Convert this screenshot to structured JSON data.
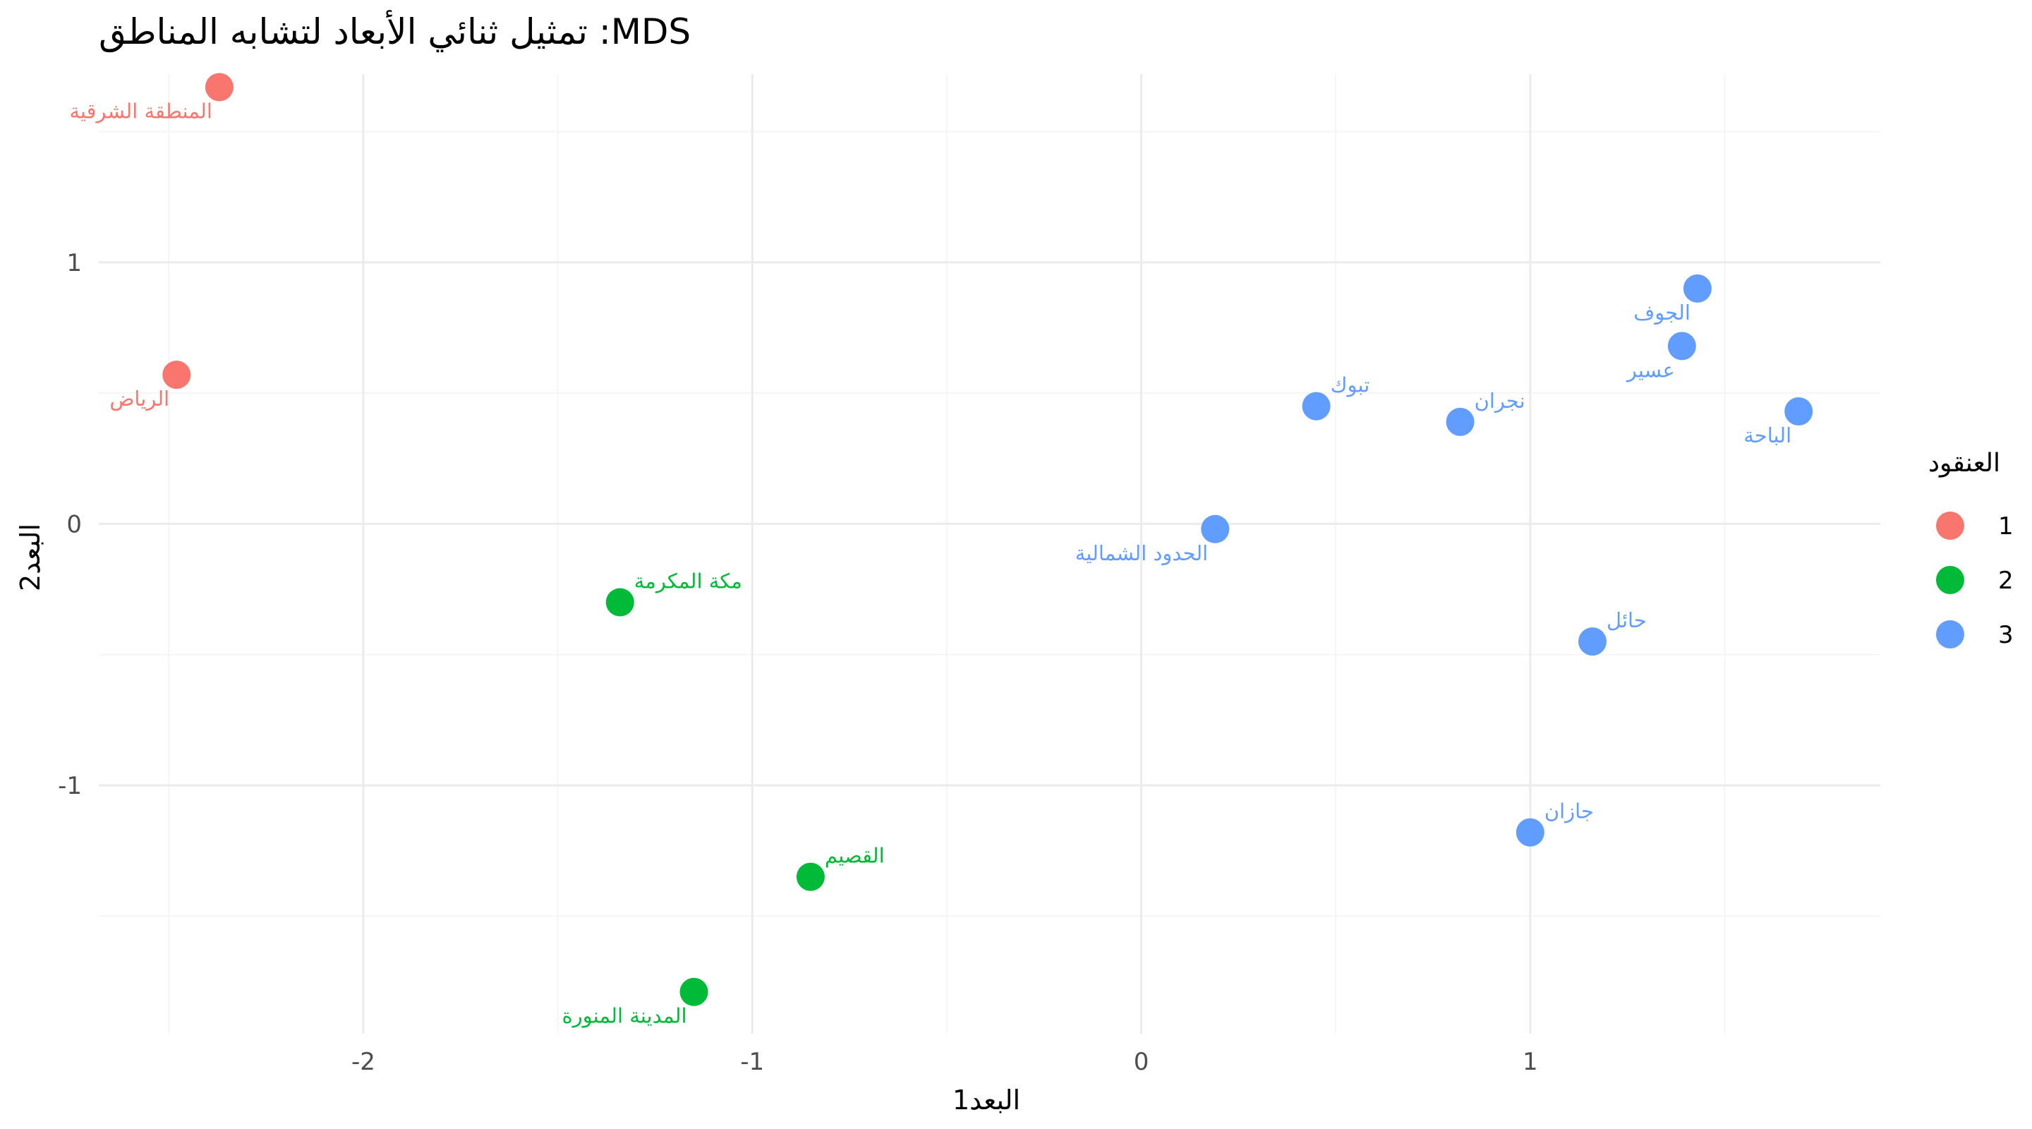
{
  "chart_data": {
    "type": "scatter",
    "title": "تمثيل ثنائي الأبعاد لتشابه المناطق :MDS",
    "xlabel": "البعد1",
    "ylabel": "البعد2",
    "xlim": [
      -2.68,
      1.9
    ],
    "ylim": [
      -1.95,
      1.72
    ],
    "x_ticks": [
      -2,
      -1,
      0,
      1
    ],
    "y_ticks": [
      -1,
      0,
      1
    ],
    "x_tick_labels": [
      "-2",
      "-1",
      "0",
      "1"
    ],
    "y_tick_labels": [
      "-1",
      "0",
      "1"
    ],
    "grid": true,
    "legend": {
      "title": "العنقود",
      "position": "right",
      "entries": [
        {
          "label": "1",
          "color": "#F8766D"
        },
        {
          "label": "2",
          "color": "#00BA38"
        },
        {
          "label": "3",
          "color": "#619CFF"
        }
      ]
    },
    "points": [
      {
        "label": "المنطقة الشرقية",
        "x": -2.37,
        "y": 1.67,
        "cluster": 1,
        "anchor": "below-left"
      },
      {
        "label": "الرياض",
        "x": -2.48,
        "y": 0.57,
        "cluster": 1,
        "anchor": "below-left"
      },
      {
        "label": "مكة المكرمة",
        "x": -1.34,
        "y": -0.3,
        "cluster": 2,
        "anchor": "above-right"
      },
      {
        "label": "القصيم",
        "x": -0.85,
        "y": -1.35,
        "cluster": 2,
        "anchor": "above-right"
      },
      {
        "label": "المدينة المنورة",
        "x": -1.15,
        "y": -1.79,
        "cluster": 2,
        "anchor": "below-left"
      },
      {
        "label": "تبوك",
        "x": 0.45,
        "y": 0.45,
        "cluster": 3,
        "anchor": "above-right"
      },
      {
        "label": "نجران",
        "x": 0.82,
        "y": 0.39,
        "cluster": 3,
        "anchor": "above-right"
      },
      {
        "label": "الحدود الشمالية",
        "x": 0.19,
        "y": -0.02,
        "cluster": 3,
        "anchor": "below-left"
      },
      {
        "label": "الجوف",
        "x": 1.43,
        "y": 0.9,
        "cluster": 3,
        "anchor": "below-left"
      },
      {
        "label": "عسير",
        "x": 1.39,
        "y": 0.68,
        "cluster": 3,
        "anchor": "below-left"
      },
      {
        "label": "الباحة",
        "x": 1.69,
        "y": 0.43,
        "cluster": 3,
        "anchor": "below-left"
      },
      {
        "label": "حائل",
        "x": 1.16,
        "y": -0.45,
        "cluster": 3,
        "anchor": "above-right"
      },
      {
        "label": "جازان",
        "x": 1.0,
        "y": -1.18,
        "cluster": 3,
        "anchor": "above-right"
      }
    ]
  }
}
